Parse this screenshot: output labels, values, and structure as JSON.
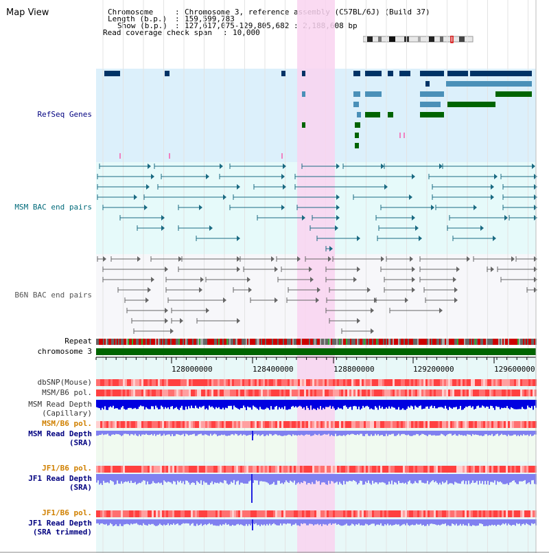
{
  "app_title": "Map View",
  "header": {
    "chromosome_label": "Chromosome",
    "chromosome_value": "Chromosome 3, reference assembly (C57BL/6J) (Build 37)",
    "length_label": "Length (b.p.)",
    "length_value": "159,599,783",
    "show_label": "Show (b.p.)",
    "show_value": "127,617,075-129,805,682 : 2,188,608 bp",
    "read_coverage_label": "Read coverage check span",
    "read_coverage_value": "10,000"
  },
  "tracks": {
    "refseq": "RefSeq Genes",
    "msm_bac": "MSM BAC end pairs",
    "b6n_bac": "B6N BAC end pairs",
    "repeat": "Repeat",
    "chromosome": "chromosome 3",
    "dbsnp": "dbSNP(Mouse)",
    "msm_b6_pol_1": "MSM/B6 pol.",
    "msm_read_depth_cap_1": "MSM Read Depth",
    "msm_read_depth_cap_2": "(Capillary)",
    "msm_b6_pol_2": "MSM/B6 pol.",
    "msm_read_depth_sra_1": "MSM Read Depth",
    "msm_read_depth_sra_2": "(SRA)",
    "jf1_b6_pol_1": "JF1/B6 pol.",
    "jf1_read_depth_sra_1": "JF1 Read Depth",
    "jf1_read_depth_sra_2": "(SRA)",
    "jf1_b6_pol_2": "JF1/B6 pol.",
    "jf1_read_depth_trim_1": "JF1 Read Depth",
    "jf1_read_depth_trim_2": "(SRA trimmed)"
  },
  "axis_ticks": [
    "128000000",
    "128400000",
    "128800000",
    "129200000",
    "129600000"
  ],
  "colors": {
    "refseq_bg": "#dcf0fb",
    "bac_bg": "#e6fafa",
    "b6n_bg": "#f7f7fa",
    "highlight": "#f9d4f0",
    "msm_label": "#006a7a",
    "refseq_label": "#000080",
    "orange_label": "#d08000",
    "gene_navy": "#003366",
    "gene_steel": "#4a90b8",
    "gene_green": "#006400",
    "chrom_green": "#006400",
    "depth_blue": "#0000dd",
    "depth_light": "#8080f0"
  }
}
